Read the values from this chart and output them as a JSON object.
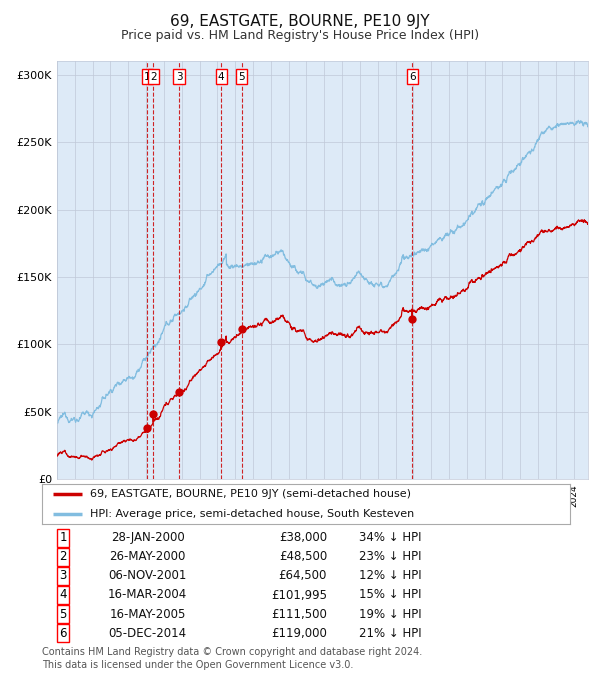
{
  "title": "69, EASTGATE, BOURNE, PE10 9JY",
  "subtitle": "Price paid vs. HM Land Registry's House Price Index (HPI)",
  "title_fontsize": 11,
  "subtitle_fontsize": 9,
  "hpi_color": "#82bde0",
  "price_color": "#cc0000",
  "background_color": "#ffffff",
  "chart_bg_color": "#ddeaf7",
  "grid_color": "#c0c8d8",
  "ylim": [
    0,
    310000
  ],
  "yticks": [
    0,
    50000,
    100000,
    150000,
    200000,
    250000,
    300000
  ],
  "ytick_labels": [
    "£0",
    "£50K",
    "£100K",
    "£150K",
    "£200K",
    "£250K",
    "£300K"
  ],
  "xstart": 1995.0,
  "xend": 2024.8,
  "transactions": [
    {
      "num": 1,
      "year": 2000.07,
      "price": 38000,
      "label": "28-JAN-2000",
      "pct": "34%"
    },
    {
      "num": 2,
      "year": 2000.4,
      "price": 48500,
      "label": "26-MAY-2000",
      "pct": "23%"
    },
    {
      "num": 3,
      "year": 2001.85,
      "price": 64500,
      "label": "06-NOV-2001",
      "pct": "12%"
    },
    {
      "num": 4,
      "year": 2004.21,
      "price": 101995,
      "label": "16-MAR-2004",
      "pct": "15%"
    },
    {
      "num": 5,
      "year": 2005.37,
      "price": 111500,
      "label": "16-MAY-2005",
      "pct": "19%"
    },
    {
      "num": 6,
      "year": 2014.93,
      "price": 119000,
      "label": "05-DEC-2014",
      "pct": "21%"
    }
  ],
  "legend_entries": [
    "69, EASTGATE, BOURNE, PE10 9JY (semi-detached house)",
    "HPI: Average price, semi-detached house, South Kesteven"
  ],
  "footer_lines": [
    "Contains HM Land Registry data © Crown copyright and database right 2024.",
    "This data is licensed under the Open Government Licence v3.0."
  ],
  "footer_fontsize": 7.0,
  "table_fontsize": 8.5,
  "legend_fontsize": 8.0
}
